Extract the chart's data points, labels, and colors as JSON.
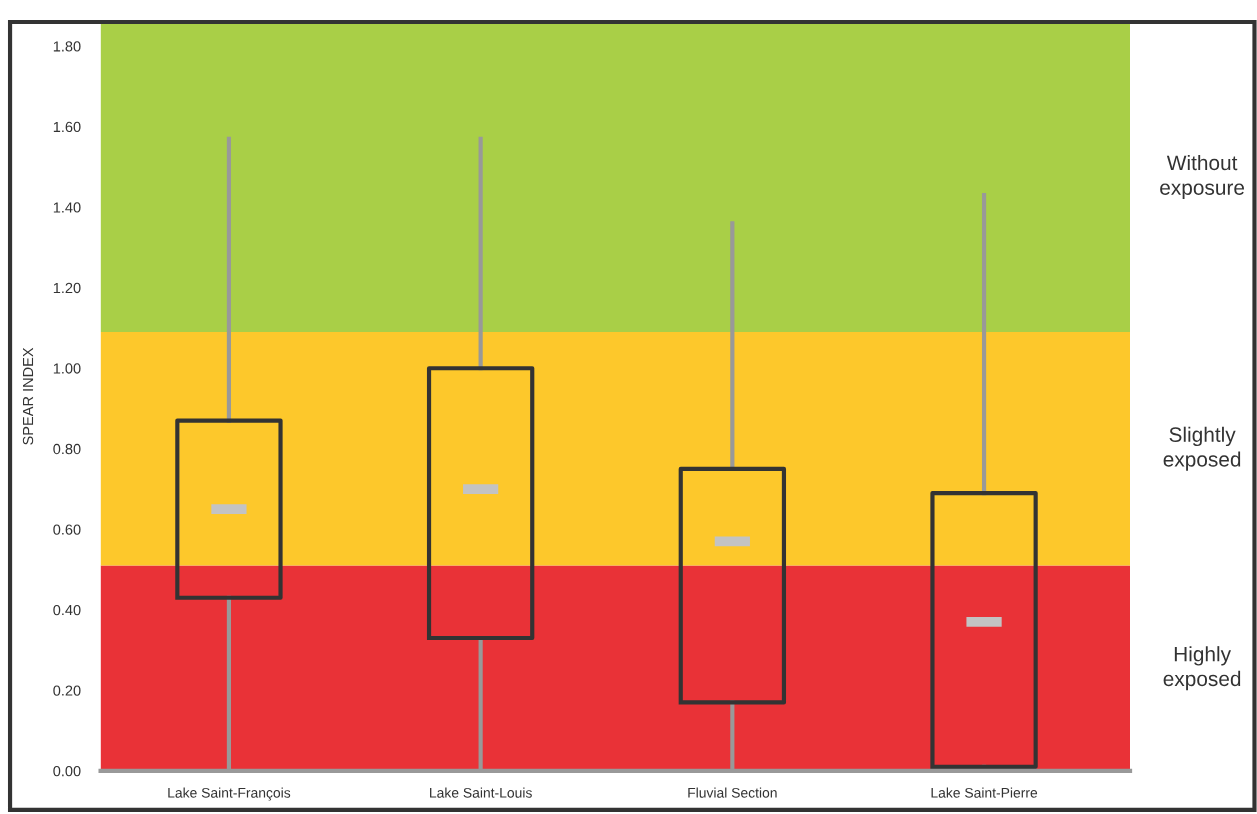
{
  "chart_data": {
    "type": "box",
    "ylabel": "SPEAR INDEX",
    "categories": [
      "Lake Saint-François",
      "Lake Saint-Louis",
      "Fluvial Section",
      "Lake Saint-Pierre"
    ],
    "boxes": [
      {
        "low": 0,
        "q1": 0.43,
        "median": 0.65,
        "q3": 0.87,
        "high": 1.57
      },
      {
        "low": 0,
        "q1": 0.33,
        "median": 0.7,
        "q3": 1.0,
        "high": 1.57
      },
      {
        "low": 0,
        "q1": 0.17,
        "median": 0.57,
        "q3": 0.75,
        "high": 1.36
      },
      {
        "low": 0.01,
        "q1": 0.01,
        "median": 0.37,
        "q3": 0.69,
        "high": 1.43
      }
    ],
    "ylim": [
      0,
      1.86
    ],
    "yticks": [
      {
        "value": 0,
        "label": "0.00"
      },
      {
        "value": 0.2,
        "label": "0.20"
      },
      {
        "value": 0.4,
        "label": "0.40"
      },
      {
        "value": 0.6,
        "label": "0.60"
      },
      {
        "value": 0.8,
        "label": "0.80"
      },
      {
        "value": 1.0,
        "label": "1.00"
      },
      {
        "value": 1.2,
        "label": "1.20"
      },
      {
        "value": 1.4,
        "label": "1.40"
      },
      {
        "value": 1.6,
        "label": "1.60"
      },
      {
        "value": 1.8,
        "label": "1.80"
      }
    ],
    "bands": [
      {
        "axis": "y",
        "from": 0,
        "to": 0.51,
        "label": "Highly\nexposed",
        "color": "#e93237"
      },
      {
        "axis": "y",
        "from": 0.51,
        "to": 1.09,
        "label": "Slightly\nexposed",
        "color": "#fdc82b"
      },
      {
        "axis": "y",
        "from": 1.09,
        "to": 1.86,
        "label": "Without\nexposure",
        "color": "#a9cf47"
      }
    ],
    "grid": false,
    "legend": false
  }
}
